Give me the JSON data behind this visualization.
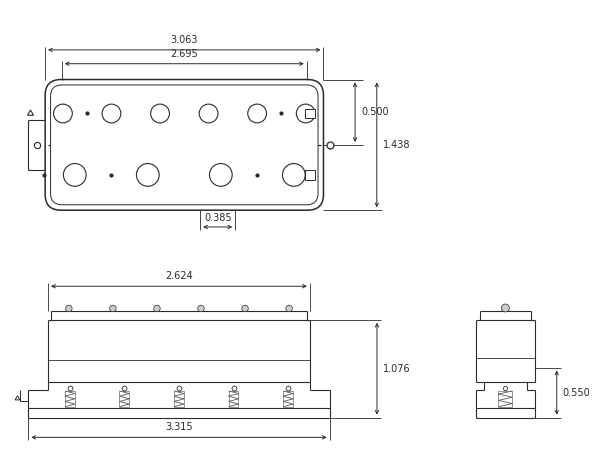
{
  "bg_color": "#ffffff",
  "line_color": "#2a2a2a",
  "dim_color": "#2a2a2a",
  "font_size": 7.0,
  "dimensions": {
    "top_width": "3.063",
    "inner_width": "2.695",
    "right_height_top": "0.500",
    "right_height_total": "1.438",
    "bottom_spacing": "0.385",
    "side_width": "2.624",
    "total_height": "1.076",
    "base_width": "3.315",
    "side_view_height": "0.550"
  }
}
